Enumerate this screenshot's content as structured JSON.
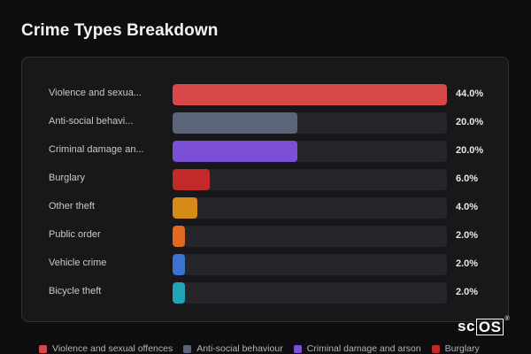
{
  "title": "Crime Types Breakdown",
  "chart_data": {
    "type": "bar",
    "orientation": "horizontal",
    "categories": [
      "Violence and sexual offences",
      "Anti-social behaviour",
      "Criminal damage and arson",
      "Burglary",
      "Other theft",
      "Public order",
      "Vehicle crime",
      "Bicycle theft"
    ],
    "display_labels": [
      "Violence and sexua...",
      "Anti-social behavi...",
      "Criminal damage an...",
      "Burglary",
      "Other theft",
      "Public order",
      "Vehicle crime",
      "Bicycle theft"
    ],
    "values": [
      44.0,
      20.0,
      20.0,
      6.0,
      4.0,
      2.0,
      2.0,
      2.0
    ],
    "value_labels": [
      "44.0%",
      "20.0%",
      "20.0%",
      "6.0%",
      "4.0%",
      "2.0%",
      "2.0%",
      "2.0%"
    ],
    "colors": [
      "#d94848",
      "#5c6577",
      "#7b4fd6",
      "#c22a2a",
      "#d68a18",
      "#e0691f",
      "#3a73d1",
      "#1fa4b8"
    ],
    "xlim": [
      0,
      44
    ],
    "grid": false,
    "legend_position": "bottom"
  },
  "legend": [
    {
      "label": "Violence and sexual offences",
      "color": "#d94848"
    },
    {
      "label": "Anti-social behaviour",
      "color": "#5c6577"
    },
    {
      "label": "Criminal damage and arson",
      "color": "#7b4fd6"
    },
    {
      "label": "Burglary",
      "color": "#c22a2a"
    }
  ],
  "logo": {
    "prefix": "sc",
    "boxed": "OS",
    "mark": "®"
  }
}
